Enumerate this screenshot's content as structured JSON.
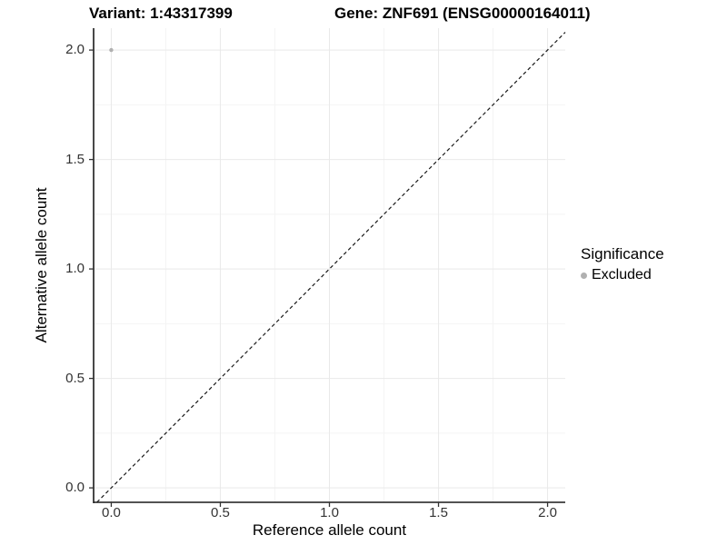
{
  "header": {
    "variant_title": "Variant: 1:43317399",
    "gene_title": "Gene: ZNF691 (ENSG00000164011)"
  },
  "legend": {
    "title": "Significance",
    "items": [
      {
        "label": "Excluded",
        "color": "#b0b0b0"
      }
    ]
  },
  "colors": {
    "background": "#ffffff",
    "grid_major": "#e9e9e9",
    "grid_minor": "#f4f4f4",
    "axis_line": "#1a1a1a",
    "tick_mark": "#333333",
    "tick_text": "#333333",
    "title_text": "#000000",
    "point": "#b0b0b0",
    "reference_line": "#1a1a1a"
  },
  "chart_data": {
    "type": "scatter",
    "title": "Variant: 1:43317399 — Gene: ZNF691 (ENSG00000164011)",
    "xlabel": "Reference allele count",
    "ylabel": "Alternative allele count",
    "xlim": [
      -0.081,
      2.081
    ],
    "ylim": [
      -0.066,
      2.1
    ],
    "x_ticks": {
      "values": [
        0,
        0.5,
        1,
        1.5,
        2
      ],
      "labels": [
        "0.0",
        "0.5",
        "1.0",
        "1.5",
        "2.0"
      ]
    },
    "y_ticks": {
      "values": [
        0,
        0.5,
        1,
        1.5,
        2
      ],
      "labels": [
        "0.0",
        "0.5",
        "1.0",
        "1.5",
        "2.0"
      ]
    },
    "x_minor": [
      0.25,
      0.75,
      1.25,
      1.75
    ],
    "y_minor": [
      0.25,
      0.75,
      1.25,
      1.75
    ],
    "grid": "major+minor",
    "legend_position": "right",
    "reference_line": {
      "style": "dashed",
      "equation": "y = x",
      "from": [
        -0.066,
        -0.066
      ],
      "to": [
        2.081,
        2.081
      ]
    },
    "series": [
      {
        "name": "Excluded",
        "color": "#b0b0b0",
        "points": [
          [
            0,
            2
          ]
        ]
      }
    ]
  }
}
